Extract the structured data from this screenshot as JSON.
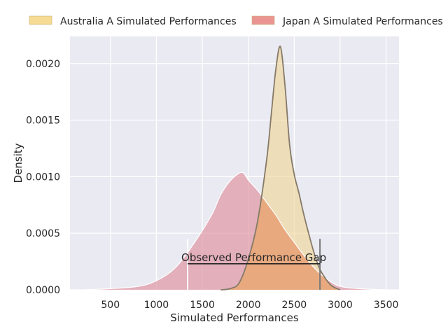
{
  "chart_data": {
    "type": "area",
    "title": "",
    "xlabel": "Simulated Performances",
    "ylabel": "Density",
    "xlim": [
      60,
      3640
    ],
    "ylim": [
      0,
      0.00224
    ],
    "grid": true,
    "legend_placement": "top-center",
    "x_ticks": [
      "500",
      "1000",
      "1500",
      "2000",
      "2500",
      "3000",
      "3500"
    ],
    "y_ticks": [
      "0.0000",
      "0.0005",
      "0.0010",
      "0.0015",
      "0.0020"
    ],
    "series": [
      {
        "name": "Australia A Simulated Performances",
        "fill_color": "#f0d28a",
        "legend_color": "#f5d57f",
        "line_color": "#857a68",
        "x": [
          1700,
          1800,
          1900,
          2000,
          2100,
          2200,
          2250,
          2300,
          2350,
          2400,
          2450,
          2500,
          2550,
          2600,
          2650,
          2700,
          2750,
          2800,
          2900,
          3000
        ],
        "y": [
          0,
          1e-05,
          6e-05,
          0.00027,
          0.0006,
          0.00115,
          0.00155,
          0.00195,
          0.00215,
          0.0018,
          0.00128,
          0.00102,
          0.00086,
          0.00068,
          0.00052,
          0.00037,
          0.00024,
          0.00015,
          4e-05,
          0
        ]
      },
      {
        "name": "Japan A Simulated Performances",
        "fill_color": "#dd8a9a",
        "legend_color": "#e8827f",
        "line_color": "#ffffff",
        "x": [
          200,
          500,
          800,
          1000,
          1200,
          1400,
          1600,
          1700,
          1800,
          1900,
          1950,
          2000,
          2100,
          2200,
          2300,
          2400,
          2500,
          2600,
          2700,
          2800,
          2900,
          3000,
          3200,
          3500
        ],
        "y": [
          0,
          1e-05,
          3e-05,
          8e-05,
          0.00019,
          0.0004,
          0.00066,
          0.00084,
          0.00096,
          0.00103,
          0.00103,
          0.00097,
          0.00088,
          0.00077,
          0.00066,
          0.00053,
          0.00042,
          0.00031,
          0.00021,
          0.00013,
          7e-05,
          3e-05,
          1e-05,
          0
        ]
      }
    ],
    "overlap_color": "#e8a97e",
    "annotation": {
      "text": "Observed Performance Gap",
      "x_start": 1340,
      "x_end": 2780,
      "y": 0.00023,
      "start_marker_top": 0.00045,
      "end_marker_top": 0.00045,
      "start_marker_color": "#ffffff",
      "end_marker_color": "#7a7a7a",
      "line_color": "#262626"
    }
  }
}
